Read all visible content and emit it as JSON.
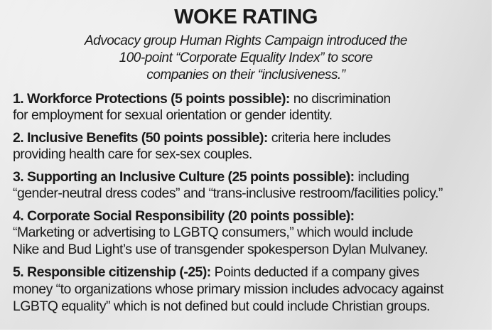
{
  "title": "WOKE RATING",
  "subtitle_lines": [
    "Advocacy group Human Rights Campaign introduced the",
    "100-point “Corporate Equality Index” to score",
    "companies on their “inclusiveness.”"
  ],
  "items": [
    {
      "heading": "1. Workforce Protections (5 points possible):",
      "first": " no discrimination",
      "rest": [
        "for employment for sexual orientation or gender identity."
      ]
    },
    {
      "heading": "2. Inclusive Benefits (50 points possible):",
      "first": " criteria here includes",
      "rest": [
        "providing health care for sex-sex couples."
      ]
    },
    {
      "heading": "3. Supporting an Inclusive Culture (25 points possible):",
      "first": " including",
      "rest": [
        "“gender-neutral dress codes” and “trans-inclusive restroom/facilities policy.”"
      ]
    },
    {
      "heading": "4. Corporate Social Responsibility (20 points possible):",
      "first": "",
      "rest": [
        "“Marketing or advertising to LGBTQ consumers,” which would include",
        "Nike and Bud Light’s use of transgender spokesperson Dylan Mulvaney."
      ]
    },
    {
      "heading": "5. Responsible citizenship (-25):",
      "first": " Points deducted if a company gives",
      "rest": [
        "money “to organizations whose primary mission includes advocacy against",
        "LGBTQ equality” which is not defined but could include Christian groups."
      ]
    }
  ]
}
